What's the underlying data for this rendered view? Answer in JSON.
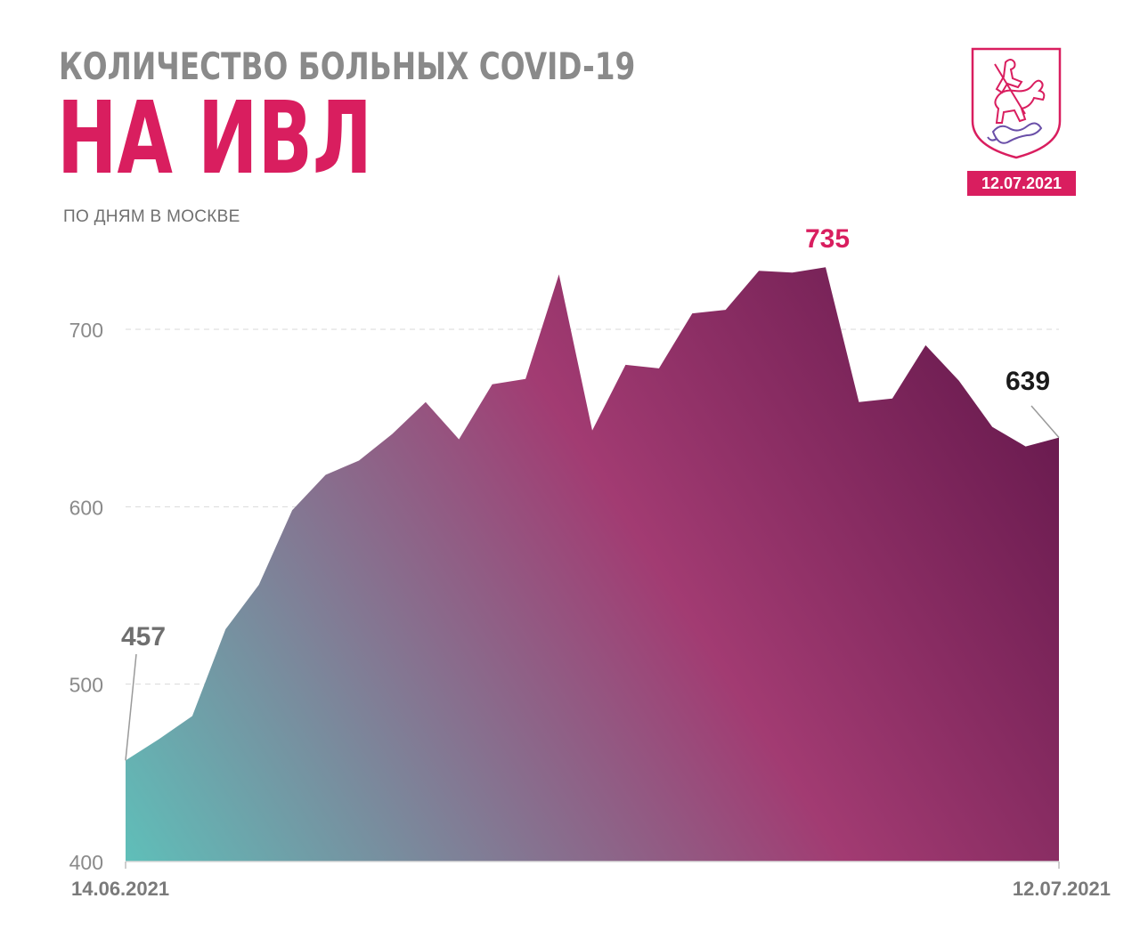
{
  "header": {
    "top_title": "КОЛИЧЕСТВО БОЛЬНЫХ COVID-19",
    "main_title": "НА ИВЛ",
    "subtitle": "ПО ДНЯМ В МОСКВЕ",
    "date_badge": "12.07.2021",
    "emblem_icon": "moscow-coat-of-arms-icon"
  },
  "colors": {
    "accent": "#d91e5f",
    "gradient_start": "#5fbfb9",
    "gradient_mid": "#a23b72",
    "gradient_end": "#5e1448",
    "axis_text": "#8a8a8a"
  },
  "chart_data": {
    "type": "area",
    "title": "",
    "xlabel": "",
    "ylabel": "",
    "ylim": [
      400,
      735
    ],
    "yticks": [
      400,
      500,
      600,
      700
    ],
    "x_start_label": "14.06.2021",
    "x_end_label": "12.07.2021",
    "x": [
      "14.06.2021",
      "15.06.2021",
      "16.06.2021",
      "17.06.2021",
      "18.06.2021",
      "19.06.2021",
      "20.06.2021",
      "21.06.2021",
      "22.06.2021",
      "23.06.2021",
      "24.06.2021",
      "25.06.2021",
      "26.06.2021",
      "27.06.2021",
      "28.06.2021",
      "29.06.2021",
      "30.06.2021",
      "01.07.2021",
      "02.07.2021",
      "03.07.2021",
      "04.07.2021",
      "05.07.2021",
      "06.07.2021",
      "07.07.2021",
      "08.07.2021",
      "09.07.2021",
      "10.07.2021",
      "11.07.2021",
      "12.07.2021"
    ],
    "values": [
      457,
      469,
      482,
      531,
      556,
      598,
      618,
      626,
      641,
      659,
      638,
      669,
      672,
      731,
      643,
      680,
      678,
      709,
      711,
      733,
      732,
      735,
      659,
      661,
      691,
      671,
      645,
      634,
      639
    ],
    "annotations": [
      {
        "label": "457",
        "color": "#6f6f6f"
      },
      {
        "label": "735",
        "color": "#d91e5f"
      },
      {
        "label": "639",
        "color": "#1a1a1a"
      }
    ],
    "grid": true,
    "legend": "none"
  }
}
